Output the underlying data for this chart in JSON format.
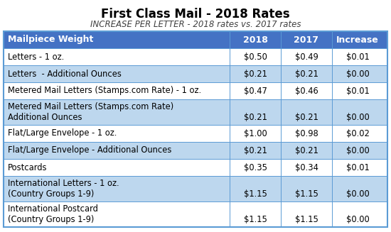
{
  "title": "First Class Mail - 2018 Rates",
  "subtitle": "INCREASE PER LETTER - 2018 rates vs. 2017 rates",
  "col_headers": [
    "Mailpiece Weight",
    "2018",
    "2017",
    "Increase"
  ],
  "rows": [
    {
      "label": "Letters - 1 oz.",
      "label2": "",
      "rate2018": "$0.50",
      "rate2017": "$0.49",
      "increase": "$0.01",
      "tall": false
    },
    {
      "label": "Letters  - Additional Ounces",
      "label2": "",
      "rate2018": "$0.21",
      "rate2017": "$0.21",
      "increase": "$0.00",
      "tall": false
    },
    {
      "label": "Metered Mail Letters (Stamps.com Rate) - 1 oz.",
      "label2": "",
      "rate2018": "$0.47",
      "rate2017": "$0.46",
      "increase": "$0.01",
      "tall": false
    },
    {
      "label": "Metered Mail Letters (Stamps.com Rate)",
      "label2": "Additional Ounces",
      "rate2018": "$0.21",
      "rate2017": "$0.21",
      "increase": "$0.00",
      "tall": true
    },
    {
      "label": "Flat/Large Envelope - 1 oz.",
      "label2": "",
      "rate2018": "$1.00",
      "rate2017": "$0.98",
      "increase": "$0.02",
      "tall": false
    },
    {
      "label": "Flat/Large Envelope - Additional Ounces",
      "label2": "",
      "rate2018": "$0.21",
      "rate2017": "$0.21",
      "increase": "$0.00",
      "tall": false
    },
    {
      "label": "Postcards",
      "label2": "",
      "rate2018": "$0.35",
      "rate2017": "$0.34",
      "increase": "$0.01",
      "tall": false
    },
    {
      "label": "International Letters - 1 oz.",
      "label2": "(Country Groups 1-9)",
      "rate2018": "$1.15",
      "rate2017": "$1.15",
      "increase": "$0.00",
      "tall": true
    },
    {
      "label": "International Postcard",
      "label2": "(Country Groups 1-9)",
      "rate2018": "$1.15",
      "rate2017": "$1.15",
      "increase": "$0.00",
      "tall": true
    }
  ],
  "header_bg": "#4472C4",
  "header_fg": "#FFFFFF",
  "row_bg_white": "#FFFFFF",
  "row_bg_blue": "#BDD7EE",
  "border_color": "#5B9BD5",
  "title_color": "#000000",
  "subtitle_color": "#404040"
}
